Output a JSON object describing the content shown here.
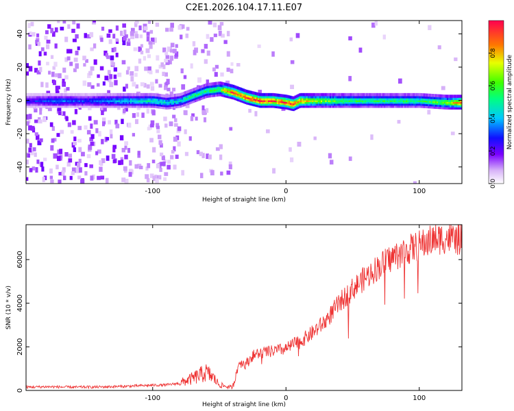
{
  "title": "C2E1.2026.104.17.11.E07",
  "chart_data": [
    {
      "type": "heatmap",
      "xlabel": "Height of straight line (km)",
      "ylabel": "Frequency (Hz)",
      "xlim": [
        -195,
        132
      ],
      "ylim": [
        -50,
        48
      ],
      "xticks": [
        -100,
        0,
        100
      ],
      "yticks": [
        -40,
        -20,
        0,
        20,
        40
      ],
      "ridge": {
        "x": [
          -195,
          -170,
          -150,
          -130,
          -110,
          -100,
          -90,
          -80,
          -70,
          -60,
          -50,
          -45,
          -40,
          -30,
          -20,
          -10,
          0,
          5,
          10,
          20,
          40,
          60,
          80,
          100,
          120,
          132
        ],
        "freq": [
          0,
          0,
          0,
          0,
          0,
          0,
          -1,
          0,
          3,
          6,
          7,
          6,
          5,
          2,
          0,
          0,
          -1,
          -2,
          0,
          0,
          0,
          0,
          0,
          0,
          -1,
          -1
        ],
        "amp": [
          0.25,
          0.35,
          0.3,
          0.4,
          0.45,
          0.5,
          0.45,
          0.45,
          0.55,
          0.55,
          0.6,
          0.85,
          0.9,
          0.95,
          0.95,
          0.9,
          0.95,
          0.95,
          0.9,
          0.7,
          0.6,
          0.55,
          0.55,
          0.55,
          0.65,
          0.9
        ]
      },
      "colorbar": {
        "label": "Normalized spectral amplitude",
        "range": [
          0,
          1
        ],
        "ticks": [
          "0.0",
          "0.2",
          "0.4",
          "0.6",
          "0.8"
        ]
      }
    },
    {
      "type": "line",
      "xlabel": "Height of straight line (km)",
      "ylabel": "SNR (10 * v/v)",
      "xlim": [
        -195,
        132
      ],
      "ylim": [
        0,
        7600
      ],
      "xticks": [
        -100,
        0,
        100
      ],
      "yticks": [
        0,
        2000,
        4000,
        6000
      ],
      "series": [
        {
          "name": "SNR",
          "color": "#ee3333",
          "x": [
            -195,
            -180,
            -160,
            -140,
            -120,
            -100,
            -90,
            -80,
            -70,
            -60,
            -55,
            -50,
            -45,
            -40,
            -35,
            -30,
            -25,
            -20,
            -10,
            0,
            5,
            10,
            20,
            30,
            40,
            50,
            60,
            70,
            80,
            90,
            100,
            110,
            120,
            132
          ],
          "y": [
            150,
            170,
            150,
            160,
            190,
            240,
            250,
            330,
            550,
            820,
            620,
            260,
            180,
            140,
            1300,
            1200,
            1600,
            1700,
            1800,
            1900,
            2100,
            2200,
            2650,
            3200,
            4000,
            4650,
            5200,
            5700,
            6100,
            6400,
            6650,
            6900,
            7000,
            6900
          ]
        }
      ]
    }
  ]
}
